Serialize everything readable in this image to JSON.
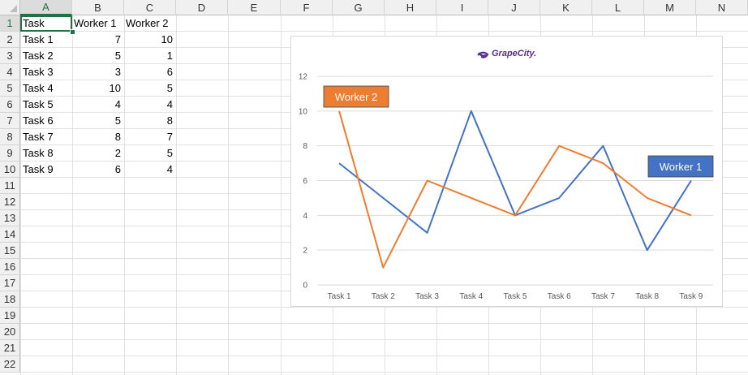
{
  "columns": [
    "A",
    "B",
    "C",
    "D",
    "E",
    "F",
    "G",
    "H",
    "I",
    "J",
    "K",
    "L",
    "M",
    "N"
  ],
  "rows": [
    "1",
    "2",
    "3",
    "4",
    "5",
    "6",
    "7",
    "8",
    "9",
    "10",
    "11",
    "12",
    "13",
    "14",
    "15",
    "16",
    "17",
    "18",
    "19",
    "20",
    "21",
    "22"
  ],
  "active_column": "A",
  "active_row": "1",
  "table": {
    "headers": [
      "Task",
      "Worker 1",
      "Worker 2"
    ],
    "rows": [
      [
        "Task 1",
        "7",
        "10"
      ],
      [
        "Task 2",
        "5",
        "1"
      ],
      [
        "Task 3",
        "3",
        "6"
      ],
      [
        "Task 4",
        "10",
        "5"
      ],
      [
        "Task 5",
        "4",
        "4"
      ],
      [
        "Task 6",
        "5",
        "8"
      ],
      [
        "Task 7",
        "8",
        "7"
      ],
      [
        "Task 8",
        "2",
        "5"
      ],
      [
        "Task 9",
        "6",
        "4"
      ]
    ]
  },
  "chart": {
    "logo_text": "GrapeCity."
  },
  "colors": {
    "worker1": "#4472c4",
    "worker2": "#ed7d31",
    "logo": "#5b2c91",
    "gridline": "#d9d9d9"
  },
  "chart_data": {
    "type": "line",
    "title": "",
    "xlabel": "",
    "ylabel": "",
    "categories": [
      "Task 1",
      "Task 2",
      "Task 3",
      "Task 4",
      "Task 5",
      "Task 6",
      "Task 7",
      "Task 8",
      "Task 9"
    ],
    "series": [
      {
        "name": "Worker 1",
        "values": [
          7,
          5,
          3,
          10,
          4,
          5,
          8,
          2,
          6
        ]
      },
      {
        "name": "Worker 2",
        "values": [
          10,
          1,
          6,
          5,
          4,
          8,
          7,
          5,
          4
        ]
      }
    ],
    "ylim": [
      0,
      12
    ],
    "yticks": [
      "0",
      "2",
      "4",
      "6",
      "8",
      "10",
      "12"
    ],
    "grid": true,
    "legend": "none",
    "annotations": [
      "Worker 2",
      "Worker 1"
    ]
  }
}
